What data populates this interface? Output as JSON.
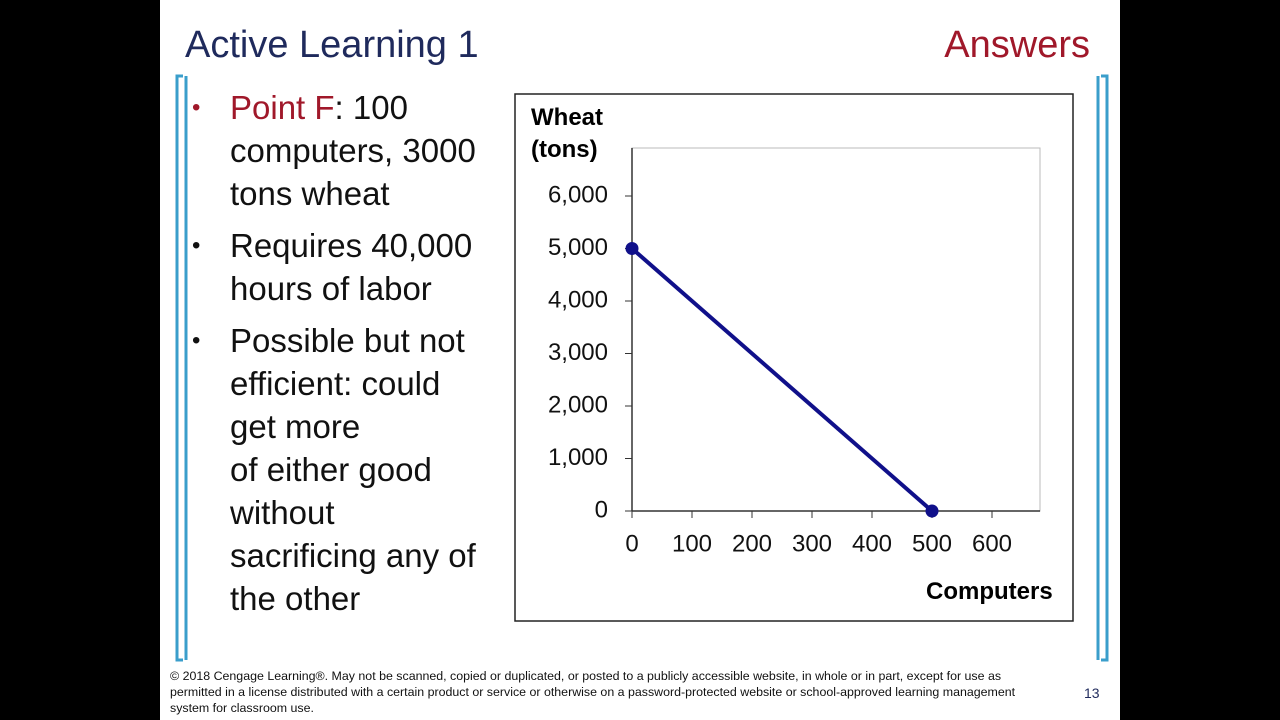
{
  "slide": {
    "title": "Active Learning 1",
    "tag": "Answers",
    "bullets": [
      {
        "label": "Point F",
        "lines": [
          ": 100",
          "computers, 3000",
          "tons wheat"
        ]
      },
      {
        "lines": [
          "Requires 40,000",
          "hours of labor"
        ]
      },
      {
        "lines": [
          "Possible but not",
          "efficient: could",
          "get more",
          "of either good",
          "without",
          "sacrificing any of",
          "the other"
        ]
      }
    ],
    "footer": "© 2018 Cengage Learning®. May not be scanned, copied or duplicated, or posted to a publicly accessible website, in whole or in part, except for use as permitted in a license distributed with a certain product or service or otherwise on a password-protected website or school-approved learning management system for classroom use.",
    "page_number": "13"
  },
  "chart_data": {
    "type": "line",
    "y_label": "Wheat (tons)",
    "x_label": "Computers",
    "x": [
      0,
      500
    ],
    "series": [
      {
        "color": "#10108a",
        "values": [
          5000,
          0
        ]
      }
    ],
    "markers": true,
    "xlim": [
      0,
      680
    ],
    "ylim": [
      0,
      7000
    ],
    "xticks": [
      0,
      100,
      200,
      300,
      400,
      500,
      600
    ],
    "yticks": [
      0,
      {
        "value": 1000,
        "label": "1,000"
      },
      {
        "value": 2000,
        "label": "2,000"
      },
      {
        "value": 3000,
        "label": "3,000"
      },
      {
        "value": 4000,
        "label": "4,000"
      },
      {
        "value": 5000,
        "label": "5,000"
      },
      {
        "value": 6000,
        "label": "6,000"
      }
    ]
  }
}
